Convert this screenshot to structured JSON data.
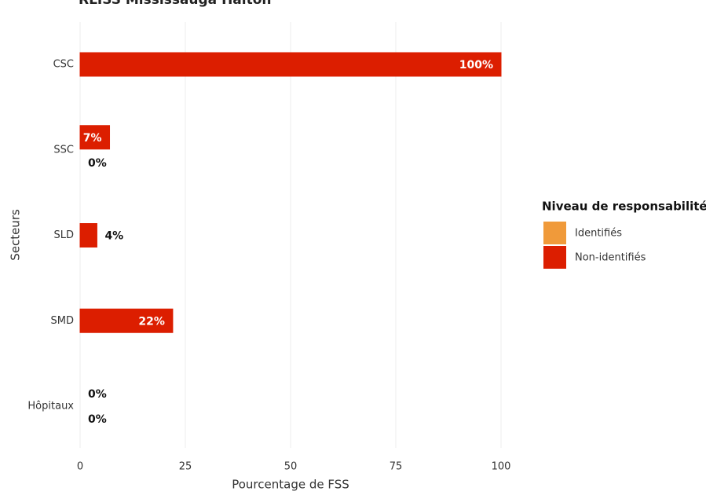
{
  "chart_data": {
    "type": "bar",
    "orientation": "horizontal",
    "title": "RLISS Mississauga Halton",
    "categories": [
      "CSC",
      "SSC",
      "SLD",
      "SMD",
      "Hôpitaux"
    ],
    "series": [
      {
        "name": "Identifiés",
        "color": "#f09a3a",
        "values": [
          null,
          0,
          null,
          null,
          0
        ],
        "value_labels": [
          null,
          "0%",
          null,
          null,
          "0%"
        ]
      },
      {
        "name": "Non-identifiés",
        "color": "#dc1e00",
        "values": [
          100,
          7,
          4,
          22,
          0
        ],
        "value_labels": [
          "100%",
          "7%",
          "4%",
          "22%",
          "0%"
        ]
      }
    ],
    "xlim": [
      0,
      100
    ],
    "xticks": [
      0,
      25,
      50,
      75,
      100
    ],
    "grid": true,
    "xlabel": "Pourcentage de FSS",
    "ylabel": "Secteurs",
    "legend": {
      "title": "Niveau de responsabilité",
      "position": "right"
    }
  }
}
